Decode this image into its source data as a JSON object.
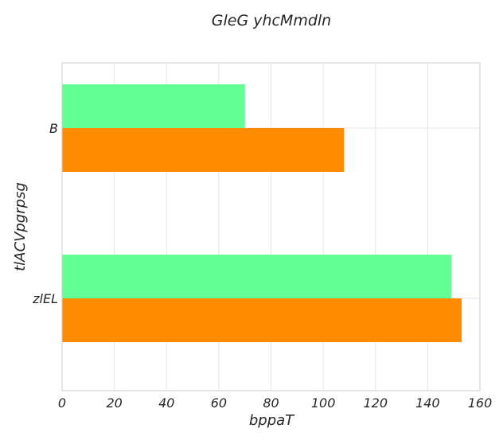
{
  "chart_data": {
    "type": "bar",
    "orientation": "horizontal",
    "title": "GleG yhcMmdln",
    "xlabel": "bppaT",
    "ylabel": "tlACVpgrpsg",
    "categories": [
      "B",
      "zlEL"
    ],
    "series": [
      {
        "values": [
          70,
          149
        ],
        "color": "#61ff94"
      },
      {
        "values": [
          108,
          153
        ],
        "color": "#ff8c00"
      }
    ],
    "xlim": [
      0,
      160
    ],
    "xticks": [
      0,
      20,
      40,
      60,
      80,
      100,
      120,
      140,
      160
    ],
    "grid": true
  }
}
